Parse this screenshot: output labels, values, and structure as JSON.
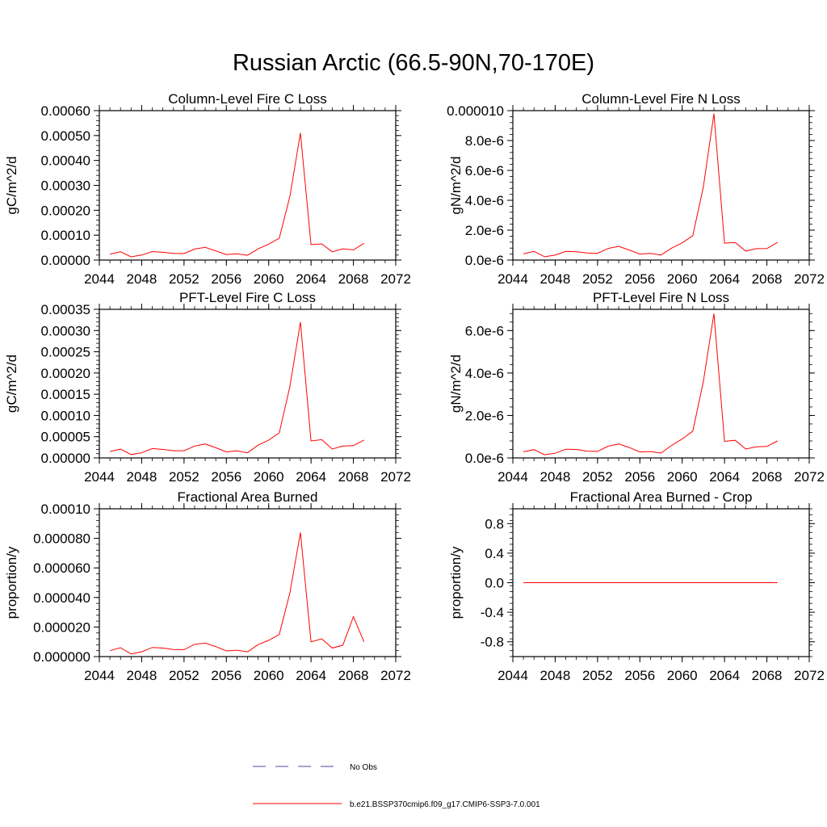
{
  "figure": {
    "title": "Russian Arctic (66.5-90N,70-170E)"
  },
  "legend": {
    "entries": [
      {
        "label": "No Obs",
        "color": "#4a4aaa",
        "dash": true
      },
      {
        "label": "b.e21.BSSP370cmip6.f09_g17.CMIP6-SSP3-7.0.001",
        "color": "#ff0000",
        "dash": false
      }
    ]
  },
  "chart_data": [
    {
      "type": "line",
      "title": "Column-Level Fire C Loss",
      "xlabel": "",
      "ylabel": "gC/m^2/d",
      "xlim": [
        2044,
        2072
      ],
      "ylim": [
        0,
        0.0006
      ],
      "xticks": [
        2044,
        2048,
        2052,
        2056,
        2060,
        2064,
        2068,
        2072
      ],
      "xtick_labels": [
        "2044",
        "2048",
        "2052",
        "2056",
        "2060",
        "2064",
        "2068",
        "2072"
      ],
      "yticks": [
        0,
        0.0001,
        0.0002,
        0.0003,
        0.0004,
        0.0005,
        0.0006
      ],
      "ytick_labels": [
        "0.00000",
        "0.00010",
        "0.00020",
        "0.00030",
        "0.00040",
        "0.00050",
        "0.00060"
      ],
      "grid": false,
      "series": [
        {
          "color": "#ff0000",
          "x": [
            2045,
            2046,
            2047,
            2048,
            2049,
            2050,
            2051,
            2052,
            2053,
            2054,
            2055,
            2056,
            2057,
            2058,
            2059,
            2060,
            2061,
            2062,
            2063,
            2064,
            2065,
            2066,
            2067,
            2068,
            2069
          ],
          "y": [
            2.4e-05,
            3.3e-05,
            1.3e-05,
            2e-05,
            3.4e-05,
            3.1e-05,
            2.7e-05,
            2.6e-05,
            4.4e-05,
            5.1e-05,
            3.7e-05,
            2.2e-05,
            2.5e-05,
            1.9e-05,
            4.5e-05,
            6.4e-05,
            8.8e-05,
            0.000255,
            0.00051,
            6.2e-05,
            6.5e-05,
            3.3e-05,
            4.5e-05,
            4.1e-05,
            6.7e-05
          ]
        }
      ]
    },
    {
      "type": "line",
      "title": "Column-Level Fire N Loss",
      "xlabel": "",
      "ylabel": "gN/m^2/d",
      "xlim": [
        2044,
        2072
      ],
      "ylim": [
        0,
        1e-05
      ],
      "xticks": [
        2044,
        2048,
        2052,
        2056,
        2060,
        2064,
        2068,
        2072
      ],
      "xtick_labels": [
        "2044",
        "2048",
        "2052",
        "2056",
        "2060",
        "2064",
        "2068",
        "2072"
      ],
      "yticks": [
        0,
        2e-06,
        4e-06,
        6e-06,
        8e-06,
        1e-05
      ],
      "ytick_labels": [
        "0.0e-6",
        "2.0e-6",
        "4.0e-6",
        "6.0e-6",
        "8.0e-6",
        "0.000010"
      ],
      "grid": false,
      "series": [
        {
          "color": "#ff0000",
          "x": [
            2045,
            2046,
            2047,
            2048,
            2049,
            2050,
            2051,
            2052,
            2053,
            2054,
            2055,
            2056,
            2057,
            2058,
            2059,
            2060,
            2061,
            2062,
            2063,
            2064,
            2065,
            2066,
            2067,
            2068,
            2069
          ],
          "y": [
            4.2e-07,
            5.8e-07,
            2.2e-07,
            3.3e-07,
            5.8e-07,
            5.5e-07,
            4.7e-07,
            4.5e-07,
            7.8e-07,
            9.2e-07,
            6.7e-07,
            4e-07,
            4.5e-07,
            3.4e-07,
            8e-07,
            1.15e-06,
            1.63e-06,
            4.9e-06,
            9.8e-06,
            1.13e-06,
            1.18e-06,
            6e-07,
            7.6e-07,
            7.7e-07,
            1.18e-06
          ]
        }
      ]
    },
    {
      "type": "line",
      "title": "PFT-Level Fire C Loss",
      "xlabel": "",
      "ylabel": "gC/m^2/d",
      "xlim": [
        2044,
        2072
      ],
      "ylim": [
        0,
        0.00035
      ],
      "xticks": [
        2044,
        2048,
        2052,
        2056,
        2060,
        2064,
        2068,
        2072
      ],
      "xtick_labels": [
        "2044",
        "2048",
        "2052",
        "2056",
        "2060",
        "2064",
        "2068",
        "2072"
      ],
      "yticks": [
        0,
        5e-05,
        0.0001,
        0.00015,
        0.0002,
        0.00025,
        0.0003,
        0.00035
      ],
      "ytick_labels": [
        "0.00000",
        "0.00005",
        "0.00010",
        "0.00015",
        "0.00020",
        "0.00025",
        "0.00030",
        "0.00035"
      ],
      "grid": false,
      "series": [
        {
          "color": "#ff0000",
          "x": [
            2045,
            2046,
            2047,
            2048,
            2049,
            2050,
            2051,
            2052,
            2053,
            2054,
            2055,
            2056,
            2057,
            2058,
            2059,
            2060,
            2061,
            2062,
            2063,
            2064,
            2065,
            2066,
            2067,
            2068,
            2069
          ],
          "y": [
            1.5e-05,
            2.1e-05,
            8e-06,
            1.2e-05,
            2.2e-05,
            2e-05,
            1.7e-05,
            1.7e-05,
            2.8e-05,
            3.3e-05,
            2.4e-05,
            1.4e-05,
            1.7e-05,
            1.2e-05,
            3e-05,
            4.2e-05,
            5.9e-05,
            0.000168,
            0.00032,
            4e-05,
            4.3e-05,
            2.1e-05,
            2.8e-05,
            2.9e-05,
            4.2e-05
          ]
        }
      ]
    },
    {
      "type": "line",
      "title": "PFT-Level Fire N Loss",
      "xlabel": "",
      "ylabel": "gN/m^2/d",
      "xlim": [
        2044,
        2072
      ],
      "ylim": [
        0,
        7e-06
      ],
      "xticks": [
        2044,
        2048,
        2052,
        2056,
        2060,
        2064,
        2068,
        2072
      ],
      "xtick_labels": [
        "2044",
        "2048",
        "2052",
        "2056",
        "2060",
        "2064",
        "2068",
        "2072"
      ],
      "yticks": [
        0,
        2e-06,
        4e-06,
        6e-06
      ],
      "ytick_labels": [
        "0.0e-6",
        "2.0e-6",
        "4.0e-6",
        "6.0e-6"
      ],
      "grid": false,
      "series": [
        {
          "color": "#ff0000",
          "x": [
            2045,
            2046,
            2047,
            2048,
            2049,
            2050,
            2051,
            2052,
            2053,
            2054,
            2055,
            2056,
            2057,
            2058,
            2059,
            2060,
            2061,
            2062,
            2063,
            2064,
            2065,
            2066,
            2067,
            2068,
            2069
          ],
          "y": [
            2.9e-07,
            3.9e-07,
            1.5e-07,
            2.2e-07,
            4.1e-07,
            4e-07,
            3.2e-07,
            3.1e-07,
            5.5e-07,
            6.6e-07,
            4.9e-07,
            2.8e-07,
            3e-07,
            2.3e-07,
            5.9e-07,
            8.9e-07,
            1.26e-06,
            3.6e-06,
            6.8e-06,
            7.8e-07,
            8.3e-07,
            4.2e-07,
            5.2e-07,
            5.4e-07,
            8e-07
          ]
        }
      ]
    },
    {
      "type": "line",
      "title": "Fractional Area Burned",
      "xlabel": "",
      "ylabel": "proportion/y",
      "xlim": [
        2044,
        2072
      ],
      "ylim": [
        0,
        0.0001
      ],
      "xticks": [
        2044,
        2048,
        2052,
        2056,
        2060,
        2064,
        2068,
        2072
      ],
      "xtick_labels": [
        "2044",
        "2048",
        "2052",
        "2056",
        "2060",
        "2064",
        "2068",
        "2072"
      ],
      "yticks": [
        0,
        2e-05,
        4e-05,
        6e-05,
        8e-05,
        0.0001
      ],
      "ytick_labels": [
        "0.000000",
        "0.000020",
        "0.000040",
        "0.000060",
        "0.000080",
        "0.00010"
      ],
      "grid": false,
      "series": [
        {
          "color": "#ff0000",
          "x": [
            2045,
            2046,
            2047,
            2048,
            2049,
            2050,
            2051,
            2052,
            2053,
            2054,
            2055,
            2056,
            2057,
            2058,
            2059,
            2060,
            2061,
            2062,
            2063,
            2064,
            2065,
            2066,
            2067,
            2068,
            2069
          ],
          "y": [
            4e-06,
            6e-06,
            1.8e-06,
            3.2e-06,
            6.2e-06,
            5.8e-06,
            4.8e-06,
            4.7e-06,
            8.3e-06,
            9.2e-06,
            6.8e-06,
            3.8e-06,
            4.3e-06,
            3.2e-06,
            8.1e-06,
            1.1e-05,
            1.5e-05,
            4.3e-05,
            8.4e-05,
            1e-05,
            1.2e-05,
            5.8e-06,
            7.7e-06,
            2.7e-05,
            1e-05
          ]
        }
      ]
    },
    {
      "type": "line",
      "title": "Fractional Area Burned - Crop",
      "xlabel": "",
      "ylabel": "proportion/y",
      "xlim": [
        2044,
        2072
      ],
      "ylim": [
        -1,
        1
      ],
      "xticks": [
        2044,
        2048,
        2052,
        2056,
        2060,
        2064,
        2068,
        2072
      ],
      "xtick_labels": [
        "2044",
        "2048",
        "2052",
        "2056",
        "2060",
        "2064",
        "2068",
        "2072"
      ],
      "yticks": [
        -0.8,
        -0.4,
        0,
        0.4,
        0.8
      ],
      "ytick_labels": [
        "-0.8",
        "-0.4",
        "0.0",
        "0.4",
        "0.8"
      ],
      "grid": false,
      "series": [
        {
          "color": "#ff0000",
          "x": [
            2045,
            2046,
            2047,
            2048,
            2049,
            2050,
            2051,
            2052,
            2053,
            2054,
            2055,
            2056,
            2057,
            2058,
            2059,
            2060,
            2061,
            2062,
            2063,
            2064,
            2065,
            2066,
            2067,
            2068,
            2069
          ],
          "y": [
            0,
            0,
            0,
            0,
            0,
            0,
            0,
            0,
            0,
            0,
            0,
            0,
            0,
            0,
            0,
            0,
            0,
            0,
            0,
            0,
            0,
            0,
            0,
            0,
            0
          ]
        }
      ]
    }
  ]
}
